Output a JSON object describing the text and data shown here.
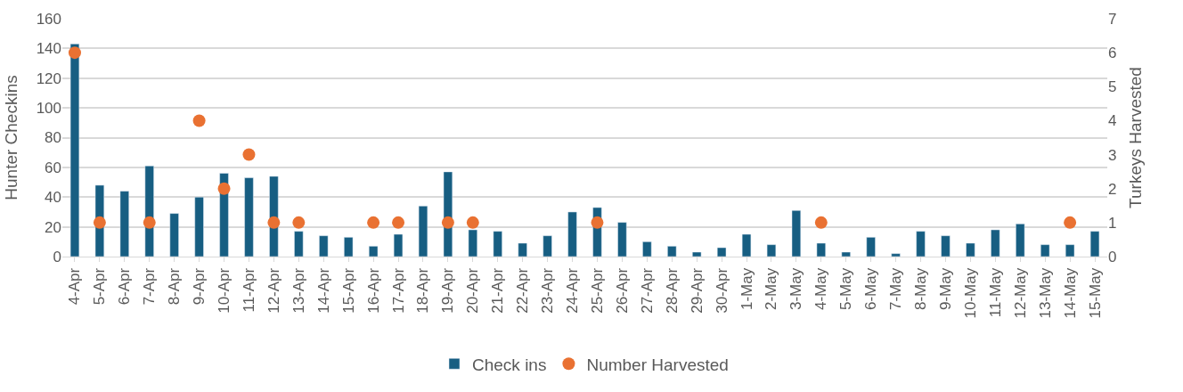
{
  "chart_data": {
    "type": "bar",
    "categories": [
      "4-Apr",
      "5-Apr",
      "6-Apr",
      "7-Apr",
      "8-Apr",
      "9-Apr",
      "10-Apr",
      "11-Apr",
      "12-Apr",
      "13-Apr",
      "14-Apr",
      "15-Apr",
      "16-Apr",
      "17-Apr",
      "18-Apr",
      "19-Apr",
      "20-Apr",
      "21-Apr",
      "22-Apr",
      "23-Apr",
      "24-Apr",
      "25-Apr",
      "26-Apr",
      "27-Apr",
      "28-Apr",
      "29-Apr",
      "30-Apr",
      "1-May",
      "2-May",
      "3-May",
      "4-May",
      "5-May",
      "6-May",
      "7-May",
      "8-May",
      "9-May",
      "10-May",
      "11-May",
      "12-May",
      "13-May",
      "14-May",
      "15-May"
    ],
    "series": [
      {
        "name": "Check ins",
        "color": "#175e82",
        "values": [
          143,
          48,
          44,
          61,
          29,
          40,
          56,
          53,
          54,
          17,
          14,
          13,
          7,
          15,
          34,
          57,
          18,
          17,
          9,
          14,
          30,
          33,
          23,
          10,
          7,
          3,
          6,
          15,
          8,
          31,
          9,
          3,
          13,
          2,
          17,
          14,
          9,
          18,
          22,
          8,
          8,
          17
        ]
      },
      {
        "name": "Number Harvested",
        "type": "scatter",
        "axis": "y2",
        "color": "#e97132",
        "values": [
          6,
          1,
          null,
          1,
          null,
          4,
          2,
          3,
          1,
          1,
          null,
          null,
          1,
          1,
          null,
          1,
          1,
          null,
          null,
          null,
          null,
          1,
          null,
          null,
          null,
          null,
          null,
          null,
          null,
          null,
          1,
          null,
          null,
          null,
          null,
          null,
          null,
          null,
          null,
          null,
          1,
          null
        ]
      }
    ],
    "ylabel": "Hunter Checkins",
    "y2label": "Turkeys Harvested",
    "ylim": [
      0,
      160
    ],
    "yticks": [
      0,
      20,
      40,
      60,
      80,
      100,
      120,
      140,
      160
    ],
    "y2lim": [
      0,
      7
    ],
    "y2ticks": [
      0,
      1,
      2,
      3,
      4,
      5,
      6,
      7
    ],
    "grid": "y",
    "legend": "bottom",
    "marker": "circle"
  }
}
